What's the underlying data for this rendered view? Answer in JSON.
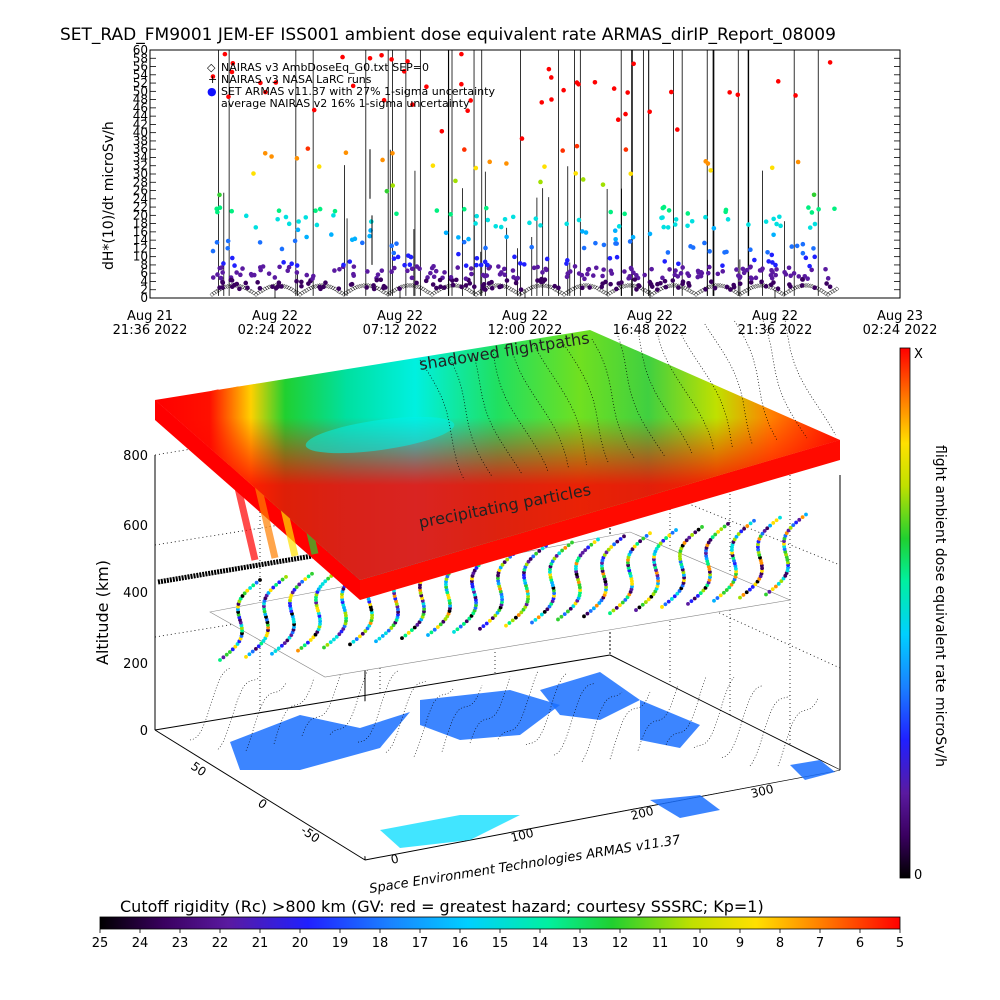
{
  "chart_data": [
    {
      "type": "scatter",
      "title": "SET_RAD_FM9001   JEM-EF ISS001 ambient dose equivalent rate ARMAS_dirIP_Report_08009",
      "ylabel": "dH*(10)/dt microSv/h",
      "xlabel": "",
      "ylim": [
        0,
        60
      ],
      "yticks": [
        "0",
        "2",
        "4",
        "6",
        "8",
        "10",
        "12",
        "14",
        "16",
        "18",
        "20",
        "22",
        "24",
        "26",
        "28",
        "30",
        "32",
        "34",
        "36",
        "38",
        "40",
        "42",
        "44",
        "46",
        "48",
        "50",
        "52",
        "54",
        "56",
        "58",
        "60"
      ],
      "xticks": [
        {
          "top": "Aug 21",
          "bottom": "21:36  2022"
        },
        {
          "top": "Aug 22",
          "bottom": "02:24  2022"
        },
        {
          "top": "Aug 22",
          "bottom": "07:12  2022"
        },
        {
          "top": "Aug 22",
          "bottom": "12:00  2022"
        },
        {
          "top": "Aug 22",
          "bottom": "16:48  2022"
        },
        {
          "top": "Aug 22",
          "bottom": "21:36  2022"
        },
        {
          "top": "Aug 23",
          "bottom": "02:24  2022"
        }
      ],
      "legend": [
        {
          "symbol": "◇",
          "color": "#000000",
          "label": "NAIRAS v3 AmbDoseEq_G0.txt SEP=0"
        },
        {
          "symbol": "+",
          "color": "#000000",
          "label": "NAIRAS v3 NASA LaRC runs"
        },
        {
          "symbol": "●",
          "color": "#1010ff",
          "label": "SET ARMAS v11.37 with 27% 1-sigma uncertainty"
        },
        {
          "symbol": "",
          "color": "#000000",
          "label": "average NAIRAS v2 16% 1-sigma uncertainty"
        }
      ],
      "legend_position": "top-left",
      "grid": false
    },
    {
      "type": "heatmap",
      "ylabel": "Altitude (km)",
      "zticks": [
        "0",
        "200",
        "400",
        "600",
        "800"
      ],
      "lon_ticks": [
        "0",
        "100",
        "200",
        "300"
      ],
      "lat_ticks": [
        "50",
        "0",
        "-50"
      ],
      "colorbar_label": "flight ambient dose equivalent rate microSv/h",
      "colorbar_max": "X",
      "colorbar_min": "0",
      "annotations": [
        "shadowed flightpaths",
        "precipitating particles"
      ],
      "credit": "Space Environment Technologies ARMAS v11.37"
    },
    {
      "type": "heatmap",
      "title": "Cutoff rigidity (Rc) >800 km (GV: red = greatest hazard; courtesy SSSRC; Kp=1)",
      "ticks": [
        "25",
        "24",
        "23",
        "22",
        "21",
        "20",
        "19",
        "18",
        "17",
        "16",
        "15",
        "14",
        "13",
        "12",
        "11",
        "10",
        "9",
        "8",
        "7",
        "6",
        "5"
      ]
    }
  ],
  "colors": {
    "palette": [
      "#000000",
      "#3a0060",
      "#5a1aa0",
      "#2020ff",
      "#1a70ff",
      "#00b0ff",
      "#00e0e0",
      "#00f080",
      "#30d030",
      "#a0e000",
      "#ffe000",
      "#ff9000",
      "#ff3000",
      "#ff0000"
    ]
  }
}
